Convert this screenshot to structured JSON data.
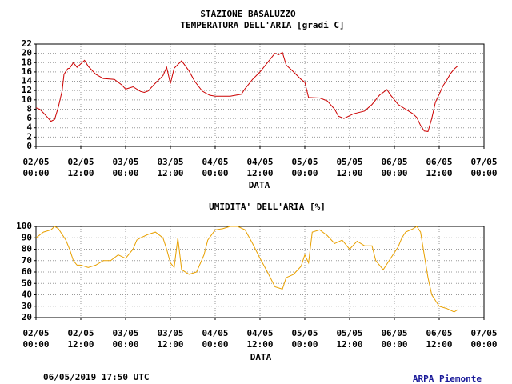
{
  "chart_data": [
    {
      "type": "line",
      "title": "STAZIONE BASALUZZO",
      "subtitle": "TEMPERATURA DELL'ARIA [gradi C]",
      "xlabel": "DATA",
      "xlim": [
        0,
        120
      ],
      "ylim": [
        0,
        22
      ],
      "grid": true,
      "xticks": [
        {
          "value": 0,
          "label": "02/05\n00:00"
        },
        {
          "value": 12,
          "label": "02/05\n12:00"
        },
        {
          "value": 24,
          "label": "03/05\n00:00"
        },
        {
          "value": 36,
          "label": "03/05\n12:00"
        },
        {
          "value": 48,
          "label": "04/05\n00:00"
        },
        {
          "value": 60,
          "label": "04/05\n12:00"
        },
        {
          "value": 72,
          "label": "05/05\n00:00"
        },
        {
          "value": 84,
          "label": "05/05\n12:00"
        },
        {
          "value": 96,
          "label": "06/05\n00:00"
        },
        {
          "value": 108,
          "label": "06/05\n12:00"
        },
        {
          "value": 120,
          "label": "07/05\n00:00"
        }
      ],
      "yticks": [
        0,
        2,
        4,
        6,
        8,
        10,
        12,
        14,
        16,
        18,
        20,
        22
      ],
      "x": [
        0,
        1,
        2,
        3,
        4,
        5,
        6,
        7,
        7.5,
        8.5,
        9,
        10,
        11,
        13,
        14,
        16,
        18,
        21,
        23,
        24,
        26,
        28,
        29,
        30,
        32,
        34,
        35,
        36,
        37,
        39,
        41,
        42.5,
        44.5,
        46.5,
        48,
        52,
        55,
        56,
        58,
        60,
        62,
        64,
        65,
        66,
        67,
        69,
        71,
        72,
        73,
        76,
        78,
        80,
        81,
        82.5,
        85,
        88,
        90,
        92,
        94,
        95,
        97,
        99,
        101,
        102,
        103,
        104,
        105,
        106,
        107,
        108,
        109,
        110,
        111,
        112,
        113
      ],
      "series": [
        {
          "name": "Temperatura",
          "color": "#cc0000",
          "values": [
            8.3,
            8,
            7.2,
            6.3,
            5.4,
            5.8,
            8.5,
            12,
            15.5,
            16.7,
            16.8,
            18,
            17,
            18.5,
            17.2,
            15.5,
            14.6,
            14.4,
            13.2,
            12.3,
            12.8,
            11.8,
            11.6,
            11.9,
            13.6,
            15.2,
            17,
            13.5,
            16.8,
            18.4,
            16.2,
            14,
            11.9,
            11,
            10.8,
            10.8,
            11.2,
            12.4,
            14.4,
            16,
            18,
            20,
            19.7,
            20.2,
            17.5,
            16,
            14.4,
            13.8,
            10.5,
            10.4,
            9.8,
            8,
            6.5,
            6,
            7,
            7.6,
            9,
            11,
            12.2,
            11,
            9,
            8,
            7,
            6.2,
            4.5,
            3.3,
            3.2,
            6,
            9.5,
            11.2,
            13,
            14.2,
            15.6,
            16.6,
            17.3
          ]
        }
      ]
    },
    {
      "type": "line",
      "subtitle": "UMIDITA' DELL'ARIA [%]",
      "xlabel": "DATA",
      "xlim": [
        0,
        120
      ],
      "ylim": [
        20,
        100
      ],
      "grid": true,
      "xticks": [
        {
          "value": 0,
          "label": "02/05\n00:00"
        },
        {
          "value": 12,
          "label": "02/05\n12:00"
        },
        {
          "value": 24,
          "label": "03/05\n00:00"
        },
        {
          "value": 36,
          "label": "03/05\n12:00"
        },
        {
          "value": 48,
          "label": "04/05\n00:00"
        },
        {
          "value": 60,
          "label": "04/05\n12:00"
        },
        {
          "value": 72,
          "label": "05/05\n00:00"
        },
        {
          "value": 84,
          "label": "05/05\n12:00"
        },
        {
          "value": 96,
          "label": "06/05\n00:00"
        },
        {
          "value": 108,
          "label": "06/05\n12:00"
        },
        {
          "value": 120,
          "label": "07/05\n00:00"
        }
      ],
      "yticks": [
        20,
        30,
        40,
        50,
        60,
        70,
        80,
        90,
        100
      ],
      "x": [
        0,
        2,
        4,
        5,
        6,
        8,
        9,
        10,
        11,
        12,
        14,
        16,
        18,
        20,
        22,
        24,
        26,
        27,
        28,
        30,
        32,
        34,
        35,
        36,
        37,
        38,
        39,
        41,
        43,
        45,
        46,
        48,
        50,
        52,
        54,
        56,
        58,
        60,
        62,
        64,
        66,
        67,
        69,
        71,
        72,
        73,
        74,
        76,
        78,
        80,
        82,
        84,
        86,
        88,
        90,
        91,
        93,
        95,
        97,
        98,
        99,
        101,
        102,
        103,
        104,
        105,
        106,
        107,
        108,
        110,
        112,
        113
      ],
      "series": [
        {
          "name": "Umidita",
          "color": "#e8a000",
          "values": [
            90,
            95,
            97,
            100,
            98,
            88,
            80,
            70,
            66,
            66,
            64,
            66,
            70,
            70,
            75,
            72,
            80,
            88,
            90,
            93,
            95,
            90,
            80,
            68,
            64,
            90,
            62,
            58,
            60,
            75,
            88,
            97,
            98,
            100,
            100,
            97,
            85,
            72,
            60,
            47,
            45,
            55,
            58,
            65,
            75,
            68,
            95,
            97,
            92,
            85,
            88,
            80,
            87,
            83,
            83,
            70,
            62,
            72,
            82,
            90,
            95,
            98,
            100,
            95,
            75,
            55,
            40,
            35,
            30,
            28,
            25,
            27
          ]
        }
      ]
    }
  ],
  "footer": {
    "timestamp": "06/05/2019 17:50 UTC",
    "source": "ARPA Piemonte"
  }
}
